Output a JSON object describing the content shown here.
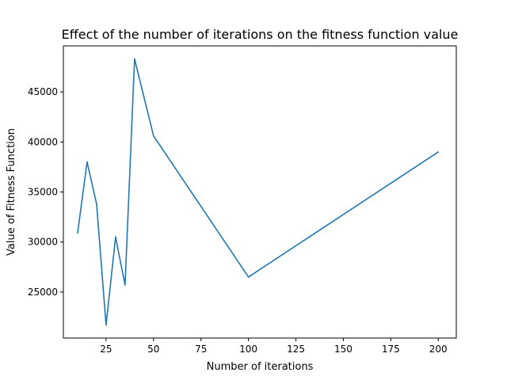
{
  "chart_data": {
    "type": "line",
    "title": "Effect of the number of iterations on the fitness function value",
    "xlabel": "Number of iterations",
    "ylabel": "Value of Fitness Function",
    "xlim": [
      2.5,
      209.5
    ],
    "ylim": [
      20400,
      49600
    ],
    "x_ticks": [
      25,
      50,
      75,
      100,
      125,
      150,
      175,
      200
    ],
    "y_ticks": [
      25000,
      30000,
      35000,
      40000,
      45000
    ],
    "grid": false,
    "series": [
      {
        "color": "#1f77b4",
        "x": [
          10,
          15,
          20,
          25,
          30,
          35,
          40,
          50,
          100,
          200
        ],
        "values": [
          30900,
          38000,
          33800,
          21700,
          30500,
          25700,
          48300,
          40600,
          26500,
          39000
        ]
      }
    ]
  }
}
